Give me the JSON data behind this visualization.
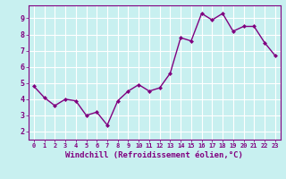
{
  "x": [
    0,
    1,
    2,
    3,
    4,
    5,
    6,
    7,
    8,
    9,
    10,
    11,
    12,
    13,
    14,
    15,
    16,
    17,
    18,
    19,
    20,
    21,
    22,
    23
  ],
  "y": [
    4.8,
    4.1,
    3.6,
    4.0,
    3.9,
    3.0,
    3.2,
    2.4,
    3.9,
    4.5,
    4.9,
    4.5,
    4.7,
    5.6,
    7.8,
    7.6,
    9.3,
    8.9,
    9.3,
    8.2,
    8.5,
    8.5,
    7.5,
    6.7
  ],
  "xlabel": "Windchill (Refroidissement éolien,°C)",
  "yticks": [
    2,
    3,
    4,
    5,
    6,
    7,
    8,
    9
  ],
  "xticks": [
    0,
    1,
    2,
    3,
    4,
    5,
    6,
    7,
    8,
    9,
    10,
    11,
    12,
    13,
    14,
    15,
    16,
    17,
    18,
    19,
    20,
    21,
    22,
    23
  ],
  "line_color": "#800080",
  "marker_color": "#800080",
  "bg_color": "#c8f0f0",
  "grid_color": "#ffffff",
  "tick_label_color": "#800080",
  "xlabel_color": "#800080",
  "spine_color": "#800080"
}
